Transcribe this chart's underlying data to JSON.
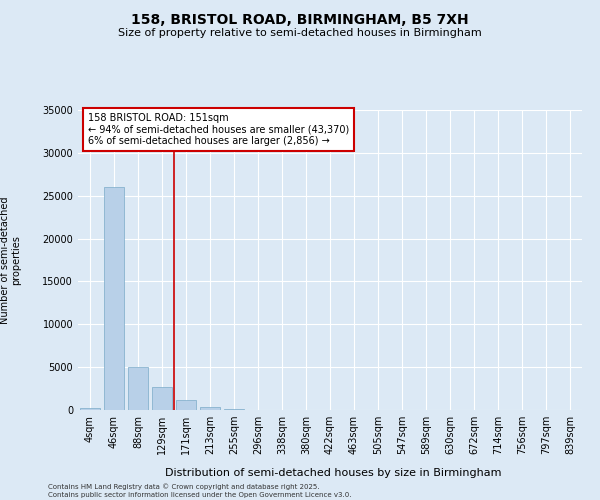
{
  "title": "158, BRISTOL ROAD, BIRMINGHAM, B5 7XH",
  "subtitle": "Size of property relative to semi-detached houses in Birmingham",
  "xlabel": "Distribution of semi-detached houses by size in Birmingham",
  "ylabel": "Number of semi-detached\nproperties",
  "footer": "Contains HM Land Registry data © Crown copyright and database right 2025.\nContains public sector information licensed under the Open Government Licence v3.0.",
  "bins": [
    "4sqm",
    "46sqm",
    "88sqm",
    "129sqm",
    "171sqm",
    "213sqm",
    "255sqm",
    "296sqm",
    "338sqm",
    "380sqm",
    "422sqm",
    "463sqm",
    "505sqm",
    "547sqm",
    "589sqm",
    "630sqm",
    "672sqm",
    "714sqm",
    "756sqm",
    "797sqm",
    "839sqm"
  ],
  "values": [
    250,
    26000,
    5000,
    2700,
    1200,
    380,
    100,
    40,
    20,
    10,
    8,
    5,
    4,
    3,
    2,
    2,
    1,
    1,
    1,
    1,
    0
  ],
  "bar_color": "#b8d0e8",
  "bar_edge_color": "#7aaac8",
  "background_color": "#dce9f5",
  "grid_color": "#ffffff",
  "vline_color": "#cc0000",
  "vline_position": 3.5,
  "annotation_text": "158 BRISTOL ROAD: 151sqm\n← 94% of semi-detached houses are smaller (43,370)\n6% of semi-detached houses are larger (2,856) →",
  "annotation_box_color": "#ffffff",
  "annotation_box_edge": "#cc0000",
  "ylim": [
    0,
    35000
  ],
  "yticks": [
    0,
    5000,
    10000,
    15000,
    20000,
    25000,
    30000,
    35000
  ],
  "title_fontsize": 10,
  "subtitle_fontsize": 8,
  "xlabel_fontsize": 8,
  "ylabel_fontsize": 7,
  "tick_fontsize": 7,
  "annotation_fontsize": 7,
  "footer_fontsize": 5
}
